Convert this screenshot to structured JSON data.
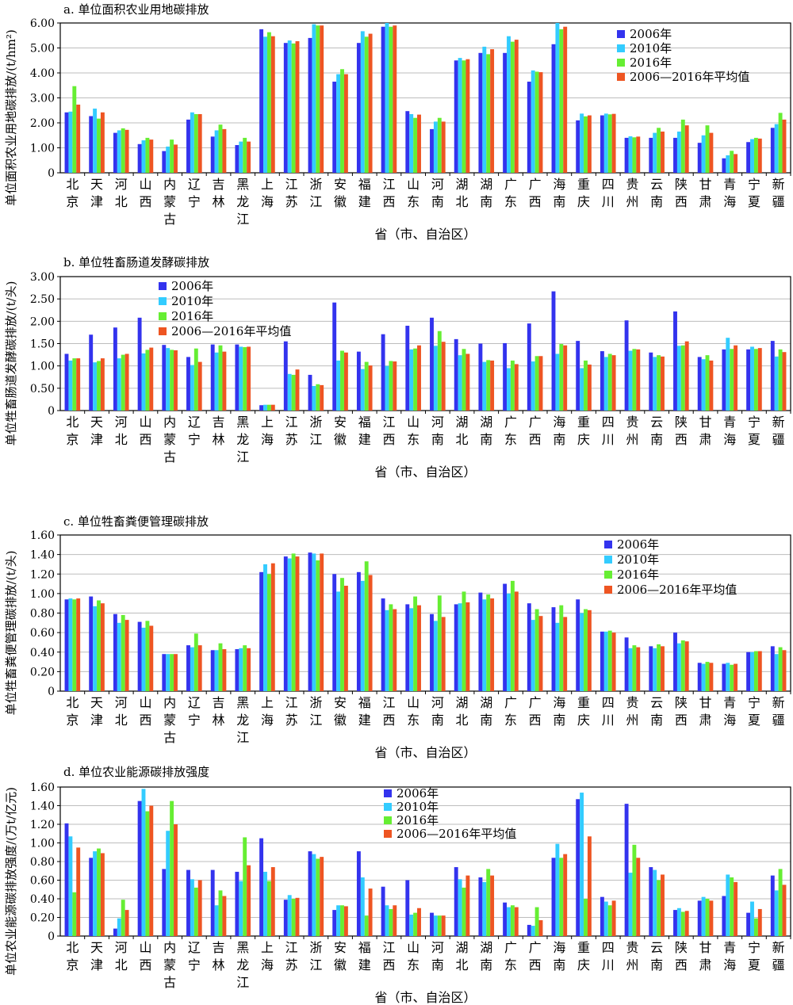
{
  "colors": {
    "s2006": "#3333ee",
    "s2010": "#33ccff",
    "s2016": "#66ee33",
    "savg": "#ee5522",
    "grid": "#bdbdbd",
    "axis": "#000000"
  },
  "legend_labels": [
    "2006年",
    "2010年",
    "2016年",
    "2006—2016年平均值"
  ],
  "charts": [
    {
      "title": "a. 单位面积农业用地碳排放",
      "ylabel": "单位面积农业用地碳排放/(t/hm²)",
      "xlabel": "省（市、自治区）"
    },
    {
      "title": "b. 单位牲畜肠道发酵碳排放",
      "ylabel": "单位牲畜肠道发酵碳排放/(t/头)",
      "xlabel": "省（市、自治区）"
    },
    {
      "title": "c. 单位牲畜粪便管理碳排放",
      "ylabel": "单位牲畜粪便管理碳排放/(t/头)",
      "xlabel": "省（市、自治区）"
    },
    {
      "title": "d. 单位农业能源碳排放强度",
      "ylabel": "单位农业能源碳排放强度/(万t/亿元)",
      "xlabel": "省（市、自治区）"
    }
  ],
  "chart_data": [
    {
      "type": "bar",
      "title": "a. 单位面积农业用地碳排放",
      "ylabel": "单位面积农业用地碳排放/(t/hm²)",
      "xlabel": "省（市、自治区）",
      "ylim": [
        0,
        6
      ],
      "yticks": [
        "0",
        "1.00",
        "2.00",
        "3.00",
        "4.00",
        "5.00",
        "6.00"
      ],
      "grid": true,
      "legend_position": "top-right",
      "categories": [
        "北京",
        "天津",
        "河北",
        "山西",
        "内蒙古",
        "辽宁",
        "吉林",
        "黑龙江",
        "上海",
        "江苏",
        "浙江",
        "安徽",
        "福建",
        "江西",
        "山东",
        "河南",
        "湖北",
        "湖南",
        "广东",
        "广西",
        "海南",
        "重庆",
        "四川",
        "贵州",
        "云南",
        "陕西",
        "甘肃",
        "青海",
        "宁夏",
        "新疆"
      ],
      "series": [
        {
          "name": "2006年",
          "values": [
            2.42,
            2.27,
            1.6,
            1.15,
            0.87,
            2.13,
            1.45,
            1.11,
            5.75,
            5.2,
            5.4,
            3.65,
            5.2,
            5.85,
            2.47,
            1.75,
            4.5,
            4.8,
            4.8,
            3.65,
            5.15,
            2.1,
            2.3,
            1.4,
            1.4,
            1.4,
            1.2,
            0.58,
            1.23,
            1.8
          ]
        },
        {
          "name": "2010年",
          "values": [
            2.45,
            2.57,
            1.7,
            1.3,
            1.05,
            2.42,
            1.7,
            1.25,
            5.45,
            5.3,
            5.95,
            3.95,
            5.67,
            6.0,
            2.35,
            2.05,
            4.6,
            5.05,
            5.47,
            4.1,
            6.0,
            2.37,
            2.37,
            1.46,
            1.6,
            1.65,
            1.5,
            0.7,
            1.35,
            1.95
          ]
        },
        {
          "name": "2016年",
          "values": [
            3.47,
            2.17,
            1.78,
            1.4,
            1.33,
            2.35,
            1.93,
            1.4,
            5.63,
            5.18,
            5.9,
            4.15,
            5.45,
            5.85,
            2.2,
            2.2,
            4.5,
            4.75,
            5.25,
            4.05,
            5.75,
            2.26,
            2.34,
            1.42,
            1.8,
            2.13,
            1.9,
            0.88,
            1.4,
            2.4
          ]
        },
        {
          "name": "2006—2016年平均值",
          "values": [
            2.73,
            2.42,
            1.72,
            1.33,
            1.13,
            2.35,
            1.75,
            1.25,
            5.47,
            5.27,
            5.9,
            3.95,
            5.57,
            5.9,
            2.33,
            2.05,
            4.55,
            4.95,
            5.33,
            4.03,
            5.85,
            2.3,
            2.36,
            1.45,
            1.65,
            1.9,
            1.6,
            0.75,
            1.37,
            2.13
          ]
        }
      ]
    },
    {
      "type": "bar",
      "title": "b. 单位牲畜肠道发酵碳排放",
      "ylabel": "单位牲畜肠道发酵碳排放/(t/头)",
      "xlabel": "省（市、自治区）",
      "ylim": [
        0,
        3
      ],
      "yticks": [
        "0",
        "0.50",
        "1.00",
        "1.50",
        "2.00",
        "2.50",
        "3.00"
      ],
      "grid": true,
      "legend_position": "top-left",
      "categories": [
        "北京",
        "天津",
        "河北",
        "山西",
        "内蒙古",
        "辽宁",
        "吉林",
        "黑龙江",
        "上海",
        "江苏",
        "浙江",
        "安徽",
        "福建",
        "江西",
        "山东",
        "河南",
        "湖北",
        "湖南",
        "广东",
        "广西",
        "海南",
        "重庆",
        "四川",
        "贵州",
        "云南",
        "陕西",
        "甘肃",
        "青海",
        "宁夏",
        "新疆"
      ],
      "series": [
        {
          "name": "2006年",
          "values": [
            1.27,
            1.7,
            1.86,
            2.08,
            1.47,
            1.2,
            1.48,
            1.48,
            0.12,
            1.55,
            0.8,
            2.42,
            1.32,
            1.71,
            1.9,
            2.08,
            1.6,
            1.5,
            1.51,
            1.95,
            2.67,
            1.56,
            1.33,
            2.02,
            1.3,
            2.22,
            1.2,
            1.37,
            1.37,
            1.56
          ]
        },
        {
          "name": "2010年",
          "values": [
            1.12,
            1.08,
            1.17,
            1.28,
            1.4,
            1.02,
            1.3,
            1.43,
            0.13,
            0.82,
            0.55,
            1.12,
            0.93,
            1.0,
            1.37,
            1.45,
            1.24,
            1.09,
            0.95,
            1.1,
            1.27,
            0.95,
            1.2,
            1.34,
            1.2,
            1.45,
            1.15,
            1.63,
            1.43,
            1.21
          ]
        },
        {
          "name": "2016年",
          "values": [
            1.17,
            1.11,
            1.25,
            1.36,
            1.36,
            1.39,
            1.46,
            1.42,
            0.13,
            0.8,
            0.59,
            1.34,
            1.09,
            1.11,
            1.39,
            1.78,
            1.38,
            1.13,
            1.12,
            1.22,
            1.49,
            1.12,
            1.27,
            1.38,
            1.24,
            1.46,
            1.24,
            1.38,
            1.38,
            1.37
          ]
        },
        {
          "name": "2006—2016年平均值",
          "values": [
            1.17,
            1.17,
            1.27,
            1.41,
            1.35,
            1.09,
            1.32,
            1.43,
            0.13,
            0.92,
            0.57,
            1.3,
            1.01,
            1.1,
            1.46,
            1.54,
            1.27,
            1.12,
            1.04,
            1.22,
            1.46,
            1.03,
            1.24,
            1.37,
            1.21,
            1.55,
            1.12,
            1.46,
            1.4,
            1.31
          ]
        }
      ]
    },
    {
      "type": "bar",
      "title": "c. 单位牲畜粪便管理碳排放",
      "ylabel": "单位牲畜粪便管理碳排放/(t/头)",
      "xlabel": "省（市、自治区）",
      "ylim": [
        0,
        1.6
      ],
      "yticks": [
        "0",
        "0.20",
        "0.40",
        "0.60",
        "0.80",
        "1.00",
        "1.20",
        "1.40",
        "1.60"
      ],
      "grid": true,
      "legend_position": "top-right",
      "categories": [
        "北京",
        "天津",
        "河北",
        "山西",
        "内蒙古",
        "辽宁",
        "吉林",
        "黑龙江",
        "上海",
        "江苏",
        "浙江",
        "安徽",
        "福建",
        "江西",
        "山东",
        "河南",
        "湖北",
        "湖南",
        "广东",
        "广西",
        "海南",
        "重庆",
        "四川",
        "贵州",
        "云南",
        "陕西",
        "甘肃",
        "青海",
        "宁夏",
        "新疆"
      ],
      "series": [
        {
          "name": "2006年",
          "values": [
            0.94,
            0.97,
            0.79,
            0.71,
            0.38,
            0.47,
            0.42,
            0.43,
            1.22,
            1.38,
            1.42,
            1.2,
            1.22,
            0.95,
            0.89,
            0.79,
            0.89,
            1.01,
            1.1,
            0.9,
            0.86,
            0.94,
            0.61,
            0.55,
            0.46,
            0.6,
            0.29,
            0.28,
            0.4,
            0.46
          ]
        },
        {
          "name": "2010年",
          "values": [
            0.95,
            0.87,
            0.7,
            0.65,
            0.38,
            0.45,
            0.42,
            0.44,
            1.3,
            1.36,
            1.41,
            1.02,
            1.13,
            0.83,
            0.85,
            0.72,
            0.9,
            0.94,
            1.0,
            0.73,
            0.7,
            0.8,
            0.61,
            0.44,
            0.44,
            0.49,
            0.28,
            0.29,
            0.4,
            0.38
          ]
        },
        {
          "name": "2016年",
          "values": [
            0.94,
            0.93,
            0.78,
            0.72,
            0.38,
            0.59,
            0.49,
            0.47,
            1.2,
            1.41,
            1.34,
            1.16,
            1.33,
            0.89,
            0.97,
            0.98,
            1.02,
            0.99,
            1.13,
            0.84,
            0.88,
            0.84,
            0.62,
            0.47,
            0.48,
            0.52,
            0.3,
            0.27,
            0.41,
            0.45
          ]
        },
        {
          "name": "2006—2016年平均值",
          "values": [
            0.95,
            0.9,
            0.73,
            0.67,
            0.38,
            0.47,
            0.43,
            0.44,
            1.31,
            1.38,
            1.41,
            1.08,
            1.19,
            0.84,
            0.88,
            0.76,
            0.91,
            0.95,
            1.02,
            0.77,
            0.76,
            0.83,
            0.6,
            0.45,
            0.46,
            0.51,
            0.29,
            0.28,
            0.41,
            0.42
          ]
        }
      ]
    },
    {
      "type": "bar",
      "title": "d. 单位农业能源碳排放强度",
      "ylabel": "单位农业能源碳排放强度/(万t/亿元)",
      "xlabel": "省（市、自治区）",
      "ylim": [
        0,
        1.6
      ],
      "yticks": [
        "0",
        "0.20",
        "0.40",
        "0.60",
        "0.80",
        "1.00",
        "1.20",
        "1.40",
        "1.60"
      ],
      "grid": true,
      "legend_position": "top-center",
      "categories": [
        "北京",
        "天津",
        "河北",
        "山西",
        "内蒙古",
        "辽宁",
        "吉林",
        "黑龙江",
        "上海",
        "江苏",
        "浙江",
        "安徽",
        "福建",
        "江西",
        "山东",
        "河南",
        "湖北",
        "湖南",
        "广东",
        "广西",
        "海南",
        "重庆",
        "四川",
        "贵州",
        "云南",
        "陕西",
        "甘肃",
        "青海",
        "宁夏",
        "新疆"
      ],
      "series": [
        {
          "name": "2006年",
          "values": [
            1.21,
            0.84,
            0.08,
            1.45,
            0.72,
            0.71,
            0.71,
            0.69,
            1.05,
            0.39,
            0.91,
            0.28,
            0.91,
            0.53,
            0.6,
            0.25,
            0.74,
            0.63,
            0.36,
            0.12,
            0.84,
            1.47,
            0.42,
            1.42,
            0.74,
            0.28,
            0.38,
            0.43,
            0.25,
            0.65
          ]
        },
        {
          "name": "2010年",
          "values": [
            1.07,
            0.91,
            0.19,
            1.58,
            1.13,
            0.61,
            0.33,
            0.59,
            0.69,
            0.44,
            0.88,
            0.33,
            0.63,
            0.33,
            0.23,
            0.22,
            0.61,
            0.58,
            0.31,
            0.11,
            0.99,
            1.54,
            0.37,
            0.68,
            0.71,
            0.3,
            0.42,
            0.66,
            0.37,
            0.49
          ]
        },
        {
          "name": "2016年",
          "values": [
            0.47,
            0.94,
            0.39,
            1.34,
            1.45,
            0.52,
            0.49,
            1.06,
            0.59,
            0.4,
            0.83,
            0.33,
            0.22,
            0.29,
            0.25,
            0.22,
            0.52,
            0.72,
            0.33,
            0.31,
            0.84,
            0.4,
            0.33,
            0.98,
            0.6,
            0.26,
            0.4,
            0.63,
            0.19,
            0.72
          ]
        },
        {
          "name": "2006—2016年平均值",
          "values": [
            0.95,
            0.89,
            0.28,
            1.4,
            1.2,
            0.6,
            0.43,
            0.76,
            0.74,
            0.41,
            0.85,
            0.32,
            0.51,
            0.33,
            0.3,
            0.22,
            0.65,
            0.65,
            0.31,
            0.17,
            0.88,
            1.07,
            0.38,
            0.84,
            0.66,
            0.27,
            0.38,
            0.58,
            0.29,
            0.55
          ]
        }
      ]
    }
  ]
}
